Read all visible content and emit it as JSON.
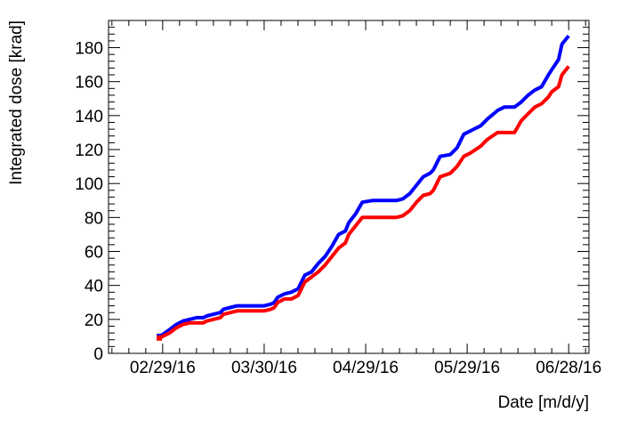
{
  "chart_data": {
    "type": "line",
    "title": "",
    "xlabel": "Date [m/d/y]",
    "ylabel": "Integrated dose [krad]",
    "x_tick_labels": [
      "02/29/16",
      "03/30/16",
      "04/29/16",
      "05/29/16",
      "06/28/16"
    ],
    "x_ticks_days": [
      0,
      30,
      60,
      90,
      120
    ],
    "xlim_days": [
      -16,
      126
    ],
    "ylim": [
      0,
      196
    ],
    "y_ticks": [
      0,
      20,
      40,
      60,
      80,
      100,
      120,
      140,
      160,
      180
    ],
    "grid": false,
    "series": [
      {
        "color": "#0000ff",
        "x_days": [
          -1,
          0,
          2,
          4,
          6,
          8,
          10,
          12,
          13,
          15,
          17,
          18,
          20,
          22,
          23,
          24,
          26,
          28,
          30,
          32,
          33,
          34,
          36,
          38,
          40,
          41,
          42,
          44,
          46,
          47,
          48,
          50,
          52,
          54,
          55,
          57,
          59,
          62,
          65,
          67,
          69,
          71,
          73,
          75,
          77,
          79,
          80,
          82,
          85,
          87,
          89,
          91,
          94,
          96,
          99,
          101,
          104,
          106,
          108,
          110,
          112,
          114,
          115,
          117,
          118,
          120
        ],
        "y": [
          10,
          11,
          14,
          17,
          19,
          20,
          21,
          21,
          22,
          23,
          24,
          26,
          27,
          28,
          28,
          28,
          28,
          28,
          28,
          29,
          30,
          33,
          35,
          36,
          38,
          42,
          46,
          48,
          53,
          55,
          57,
          63,
          70,
          72,
          77,
          82,
          89,
          90,
          90,
          90,
          90,
          91,
          94,
          99,
          104,
          106,
          108,
          116,
          117,
          121,
          129,
          131,
          134,
          138,
          143,
          145,
          145,
          148,
          152,
          155,
          157,
          164,
          167,
          173,
          182,
          187
        ]
      },
      {
        "color": "#ff0000",
        "x_days": [
          -1,
          0,
          2,
          4,
          6,
          8,
          10,
          12,
          13,
          15,
          17,
          18,
          20,
          22,
          23,
          24,
          26,
          28,
          30,
          32,
          33,
          34,
          36,
          38,
          40,
          41,
          42,
          44,
          46,
          47,
          48,
          50,
          52,
          54,
          55,
          57,
          59,
          62,
          65,
          67,
          69,
          71,
          73,
          75,
          77,
          79,
          80,
          82,
          85,
          87,
          89,
          91,
          94,
          96,
          99,
          101,
          104,
          106,
          108,
          110,
          112,
          114,
          115,
          117,
          118,
          120
        ],
        "y": [
          9,
          10,
          12,
          15,
          17,
          18,
          18,
          18,
          19,
          20,
          21,
          23,
          24,
          25,
          25,
          25,
          25,
          25,
          25,
          26,
          27,
          30,
          32,
          32,
          34,
          38,
          42,
          45,
          48,
          50,
          52,
          57,
          62,
          65,
          70,
          75,
          80,
          80,
          80,
          80,
          80,
          81,
          84,
          89,
          93,
          94,
          96,
          104,
          106,
          110,
          116,
          118,
          122,
          126,
          130,
          130,
          130,
          137,
          141,
          145,
          147,
          151,
          154,
          157,
          164,
          169
        ]
      }
    ]
  }
}
